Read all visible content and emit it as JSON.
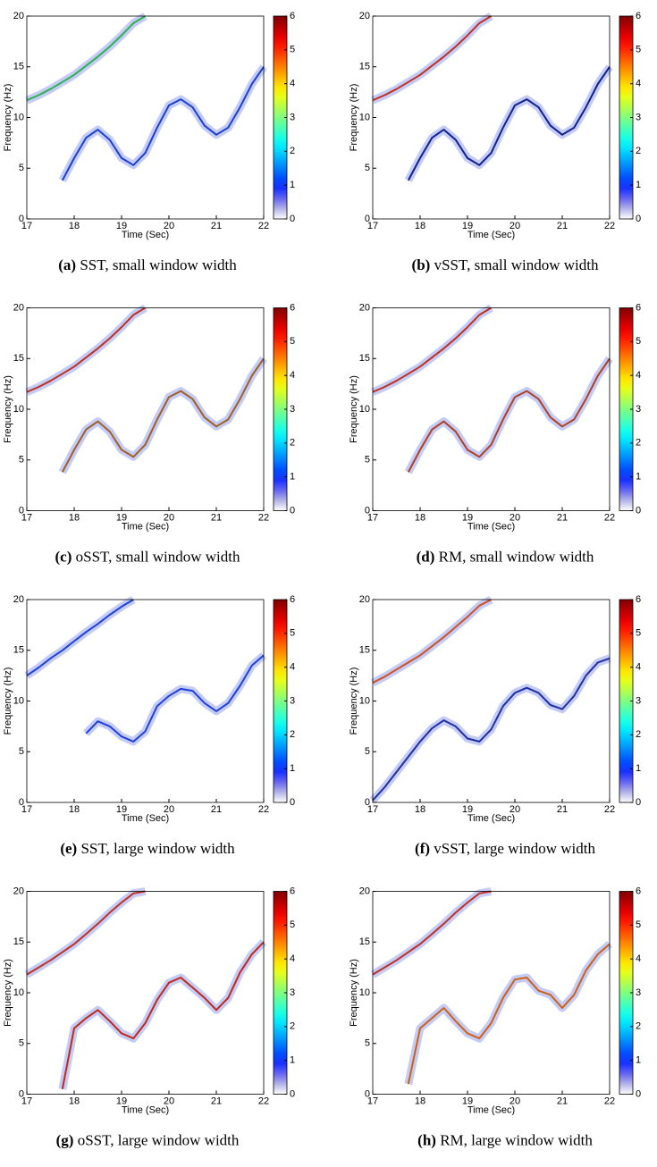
{
  "chart_data": [
    {
      "type": "heatmap",
      "caption_label": "(a)",
      "caption": "SST, small window width",
      "xlabel": "Time (Sec)",
      "ylabel": "Frequency (Hz)",
      "xlim": [
        17,
        22
      ],
      "xticks": [
        17,
        18,
        19,
        20,
        21,
        22
      ],
      "ylim": [
        0,
        20
      ],
      "yticks": [
        0,
        5,
        10,
        15,
        20
      ],
      "clim": [
        0,
        6
      ],
      "cticks": [
        0,
        1,
        2,
        3,
        4,
        5,
        6
      ],
      "colormap": "jet",
      "x": [
        17,
        17.25,
        17.5,
        17.75,
        18,
        18.25,
        18.5,
        18.75,
        19,
        19.25,
        19.5,
        19.75,
        20,
        20.25,
        20.5,
        20.75,
        21,
        21.25,
        21.5,
        21.75,
        22
      ],
      "series": [
        {
          "color": "#2fb050",
          "values": [
            11.7,
            12.2,
            12.8,
            13.5,
            14.2,
            15.1,
            16.0,
            17.0,
            18.1,
            19.3,
            20,
            null,
            null,
            null,
            null,
            null,
            null,
            null,
            null,
            null,
            null
          ]
        },
        {
          "color": "#1c3fcf",
          "values": [
            null,
            null,
            null,
            3.8,
            6.0,
            8.0,
            8.8,
            7.8,
            6.0,
            5.3,
            6.5,
            9.0,
            11.2,
            11.8,
            11.0,
            9.2,
            8.3,
            9.0,
            11.0,
            13.3,
            15
          ]
        }
      ]
    },
    {
      "type": "heatmap",
      "caption_label": "(b)",
      "caption": "vSST, small window width",
      "xlabel": "Time (Sec)",
      "ylabel": "Frequency (Hz)",
      "xlim": [
        17,
        22
      ],
      "xticks": [
        17,
        18,
        19,
        20,
        21,
        22
      ],
      "ylim": [
        0,
        20
      ],
      "yticks": [
        0,
        5,
        10,
        15,
        20
      ],
      "clim": [
        0,
        6
      ],
      "cticks": [
        0,
        1,
        2,
        3,
        4,
        5,
        6
      ],
      "colormap": "jet",
      "x": [
        17,
        17.25,
        17.5,
        17.75,
        18,
        18.25,
        18.5,
        18.75,
        19,
        19.25,
        19.5,
        19.75,
        20,
        20.25,
        20.5,
        20.75,
        21,
        21.25,
        21.5,
        21.75,
        22
      ],
      "series": [
        {
          "color": "#c03020",
          "values": [
            11.7,
            12.2,
            12.8,
            13.5,
            14.2,
            15.1,
            16.0,
            17.0,
            18.1,
            19.3,
            20,
            null,
            null,
            null,
            null,
            null,
            null,
            null,
            null,
            null,
            null
          ]
        },
        {
          "color": "#10208f",
          "values": [
            null,
            null,
            null,
            3.8,
            6.0,
            8.0,
            8.8,
            7.8,
            6.0,
            5.3,
            6.5,
            9.0,
            11.2,
            11.8,
            11.0,
            9.2,
            8.3,
            9.0,
            11.0,
            13.3,
            15
          ]
        }
      ]
    },
    {
      "type": "heatmap",
      "caption_label": "(c)",
      "caption": "oSST, small window width",
      "xlabel": "Time (Sec)",
      "ylabel": "Frequency (Hz)",
      "xlim": [
        17,
        22
      ],
      "xticks": [
        17,
        18,
        19,
        20,
        21,
        22
      ],
      "ylim": [
        0,
        20
      ],
      "yticks": [
        0,
        5,
        10,
        15,
        20
      ],
      "clim": [
        0,
        6
      ],
      "cticks": [
        0,
        1,
        2,
        3,
        4,
        5,
        6
      ],
      "colormap": "jet",
      "x": [
        17,
        17.25,
        17.5,
        17.75,
        18,
        18.25,
        18.5,
        18.75,
        19,
        19.25,
        19.5,
        19.75,
        20,
        20.25,
        20.5,
        20.75,
        21,
        21.25,
        21.5,
        21.75,
        22
      ],
      "series": [
        {
          "color": "#c03020",
          "values": [
            11.7,
            12.2,
            12.8,
            13.5,
            14.2,
            15.1,
            16.0,
            17.0,
            18.1,
            19.3,
            20,
            null,
            null,
            null,
            null,
            null,
            null,
            null,
            null,
            null,
            null
          ]
        },
        {
          "color": "#a06020",
          "values": [
            null,
            null,
            null,
            3.8,
            6.0,
            8.0,
            8.8,
            7.8,
            6.0,
            5.3,
            6.5,
            9.0,
            11.2,
            11.8,
            11.0,
            9.2,
            8.3,
            9.0,
            11.0,
            13.3,
            15
          ]
        }
      ]
    },
    {
      "type": "heatmap",
      "caption_label": "(d)",
      "caption": "RM, small window width",
      "xlabel": "Time (Sec)",
      "ylabel": "Frequency (Hz)",
      "xlim": [
        17,
        22
      ],
      "xticks": [
        17,
        18,
        19,
        20,
        21,
        22
      ],
      "ylim": [
        0,
        20
      ],
      "yticks": [
        0,
        5,
        10,
        15,
        20
      ],
      "clim": [
        0,
        6
      ],
      "cticks": [
        0,
        1,
        2,
        3,
        4,
        5,
        6
      ],
      "colormap": "jet",
      "x": [
        17,
        17.25,
        17.5,
        17.75,
        18,
        18.25,
        18.5,
        18.75,
        19,
        19.25,
        19.5,
        19.75,
        20,
        20.25,
        20.5,
        20.75,
        21,
        21.25,
        21.5,
        21.75,
        22
      ],
      "series": [
        {
          "color": "#c03020",
          "values": [
            11.7,
            12.2,
            12.8,
            13.5,
            14.2,
            15.1,
            16.0,
            17.0,
            18.1,
            19.3,
            20,
            null,
            null,
            null,
            null,
            null,
            null,
            null,
            null,
            null,
            null
          ]
        },
        {
          "color": "#b04020",
          "values": [
            null,
            null,
            null,
            3.8,
            6.0,
            8.0,
            8.8,
            7.8,
            6.0,
            5.3,
            6.5,
            9.0,
            11.2,
            11.8,
            11.0,
            9.2,
            8.3,
            9.0,
            11.0,
            13.3,
            15
          ]
        }
      ]
    },
    {
      "type": "heatmap",
      "caption_label": "(e)",
      "caption": "SST, large window width",
      "xlabel": "Time (Sec)",
      "ylabel": "Frequency (Hz)",
      "xlim": [
        17,
        22
      ],
      "xticks": [
        17,
        18,
        19,
        20,
        21,
        22
      ],
      "ylim": [
        0,
        20
      ],
      "yticks": [
        0,
        5,
        10,
        15,
        20
      ],
      "clim": [
        0,
        6
      ],
      "cticks": [
        0,
        1,
        2,
        3,
        4,
        5,
        6
      ],
      "colormap": "jet",
      "x": [
        17,
        17.25,
        17.5,
        17.75,
        18,
        18.25,
        18.5,
        18.75,
        19,
        19.25,
        19.5,
        19.75,
        20,
        20.25,
        20.5,
        20.75,
        21,
        21.25,
        21.5,
        21.75,
        22
      ],
      "series": [
        {
          "color": "#2040d8",
          "values": [
            12.5,
            13.3,
            14.2,
            15.0,
            15.9,
            16.8,
            17.6,
            18.5,
            19.3,
            20,
            null,
            null,
            null,
            null,
            null,
            null,
            null,
            null,
            null,
            null,
            null
          ]
        },
        {
          "color": "#2040d8",
          "values": [
            null,
            null,
            null,
            null,
            null,
            6.8,
            8.0,
            7.5,
            6.5,
            6.0,
            7.0,
            9.5,
            10.5,
            11.2,
            11.0,
            9.8,
            9.0,
            9.8,
            11.5,
            13.5,
            14.5
          ]
        }
      ]
    },
    {
      "type": "heatmap",
      "caption_label": "(f)",
      "caption": "vSST, large window width",
      "xlabel": "Time (Sec)",
      "ylabel": "Frequency (Hz)",
      "xlim": [
        17,
        22
      ],
      "xticks": [
        17,
        18,
        19,
        20,
        21,
        22
      ],
      "ylim": [
        0,
        20
      ],
      "yticks": [
        0,
        5,
        10,
        15,
        20
      ],
      "clim": [
        0,
        6
      ],
      "cticks": [
        0,
        1,
        2,
        3,
        4,
        5,
        6
      ],
      "colormap": "jet",
      "x": [
        17,
        17.25,
        17.5,
        17.75,
        18,
        18.25,
        18.5,
        18.75,
        19,
        19.25,
        19.5,
        19.75,
        20,
        20.25,
        20.5,
        20.75,
        21,
        21.25,
        21.5,
        21.75,
        22
      ],
      "series": [
        {
          "color": "#d05020",
          "values": [
            11.8,
            12.4,
            13.1,
            13.8,
            14.5,
            15.4,
            16.3,
            17.3,
            18.3,
            19.4,
            20,
            null,
            null,
            null,
            null,
            null,
            null,
            null,
            null,
            null,
            null
          ]
        },
        {
          "color": "#2030a0",
          "values": [
            0.2,
            1.5,
            3.0,
            4.5,
            6.0,
            7.3,
            8.1,
            7.5,
            6.3,
            6.0,
            7.2,
            9.5,
            10.8,
            11.3,
            10.8,
            9.6,
            9.2,
            10.5,
            12.5,
            13.8,
            14.2
          ]
        }
      ]
    },
    {
      "type": "heatmap",
      "caption_label": "(g)",
      "caption": "oSST, large window width",
      "xlabel": "Time (Sec)",
      "ylabel": "Frequency (Hz)",
      "xlim": [
        17,
        22
      ],
      "xticks": [
        17,
        18,
        19,
        20,
        21,
        22
      ],
      "ylim": [
        0,
        20
      ],
      "yticks": [
        0,
        5,
        10,
        15,
        20
      ],
      "clim": [
        0,
        6
      ],
      "cticks": [
        0,
        1,
        2,
        3,
        4,
        5,
        6
      ],
      "colormap": "jet",
      "x": [
        17,
        17.25,
        17.5,
        17.75,
        18,
        18.25,
        18.5,
        18.75,
        19,
        19.25,
        19.5,
        19.75,
        20,
        20.25,
        20.5,
        20.75,
        21,
        21.25,
        21.5,
        21.75,
        22
      ],
      "series": [
        {
          "color": "#c03020",
          "values": [
            11.8,
            12.5,
            13.2,
            14.0,
            14.8,
            15.8,
            16.8,
            17.9,
            18.9,
            19.8,
            20,
            null,
            null,
            null,
            null,
            null,
            null,
            null,
            null,
            null,
            null
          ]
        },
        {
          "color": "#c02818",
          "values": [
            null,
            null,
            null,
            0.5,
            6.5,
            7.5,
            8.3,
            7.2,
            6.0,
            5.5,
            7.0,
            9.3,
            11.0,
            11.5,
            10.5,
            9.5,
            8.3,
            9.5,
            12.0,
            13.8,
            15
          ]
        }
      ]
    },
    {
      "type": "heatmap",
      "caption_label": "(h)",
      "caption": "RM, large window width",
      "xlabel": "Time (Sec)",
      "ylabel": "Frequency (Hz)",
      "xlim": [
        17,
        22
      ],
      "xticks": [
        17,
        18,
        19,
        20,
        21,
        22
      ],
      "ylim": [
        0,
        20
      ],
      "yticks": [
        0,
        5,
        10,
        15,
        20
      ],
      "clim": [
        0,
        6
      ],
      "cticks": [
        0,
        1,
        2,
        3,
        4,
        5,
        6
      ],
      "colormap": "jet",
      "x": [
        17,
        17.25,
        17.5,
        17.75,
        18,
        18.25,
        18.5,
        18.75,
        19,
        19.25,
        19.5,
        19.75,
        20,
        20.25,
        20.5,
        20.75,
        21,
        21.25,
        21.5,
        21.75,
        22
      ],
      "series": [
        {
          "color": "#c03020",
          "values": [
            11.8,
            12.5,
            13.2,
            14.0,
            14.8,
            15.8,
            16.8,
            17.9,
            18.9,
            19.8,
            20,
            null,
            null,
            null,
            null,
            null,
            null,
            null,
            null,
            null,
            null
          ]
        },
        {
          "color": "#d06010",
          "values": [
            null,
            null,
            null,
            1.0,
            6.5,
            7.5,
            8.5,
            7.2,
            6.0,
            5.5,
            7.0,
            9.5,
            11.3,
            11.5,
            10.2,
            9.8,
            8.5,
            9.8,
            12.2,
            13.8,
            14.8
          ]
        }
      ]
    }
  ]
}
